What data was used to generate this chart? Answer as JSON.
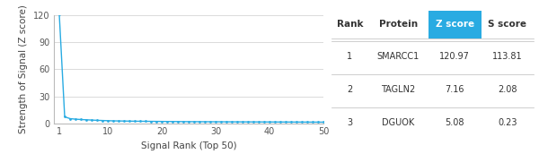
{
  "x_values": [
    1,
    2,
    3,
    4,
    5,
    6,
    7,
    8,
    9,
    10,
    11,
    12,
    13,
    14,
    15,
    16,
    17,
    18,
    19,
    20,
    21,
    22,
    23,
    24,
    25,
    26,
    27,
    28,
    29,
    30,
    31,
    32,
    33,
    34,
    35,
    36,
    37,
    38,
    39,
    40,
    41,
    42,
    43,
    44,
    45,
    46,
    47,
    48,
    49,
    50
  ],
  "y_values": [
    120.97,
    7.16,
    5.08,
    4.5,
    4.1,
    3.8,
    3.5,
    3.2,
    3.0,
    2.8,
    2.6,
    2.5,
    2.4,
    2.3,
    2.2,
    2.15,
    2.1,
    2.05,
    2.0,
    1.95,
    1.9,
    1.85,
    1.8,
    1.75,
    1.7,
    1.68,
    1.65,
    1.62,
    1.6,
    1.58,
    1.55,
    1.52,
    1.5,
    1.48,
    1.46,
    1.44,
    1.42,
    1.4,
    1.38,
    1.36,
    1.34,
    1.32,
    1.3,
    1.28,
    1.26,
    1.24,
    1.22,
    1.2,
    1.18,
    1.16
  ],
  "line_color": "#29abe2",
  "marker_color": "#29abe2",
  "xlabel": "Signal Rank (Top 50)",
  "ylabel": "Strength of Signal (Z score)",
  "xlim": [
    0,
    50
  ],
  "ylim": [
    0,
    120
  ],
  "xticks": [
    1,
    10,
    20,
    30,
    40,
    50
  ],
  "yticks": [
    0,
    30,
    60,
    90,
    120
  ],
  "background_color": "#ffffff",
  "grid_color": "#cccccc",
  "table_header_bg": "#29abe2",
  "table_header_color": "#ffffff",
  "table_headers": [
    "Rank",
    "Protein",
    "Z score",
    "S score"
  ],
  "table_rows": [
    [
      "1",
      "SMARCC1",
      "120.97",
      "113.81"
    ],
    [
      "2",
      "TAGLN2",
      "7.16",
      "2.08"
    ],
    [
      "3",
      "DGUOK",
      "5.08",
      "0.23"
    ]
  ],
  "font_size_label": 7.5,
  "font_size_tick": 7,
  "font_size_table": 7
}
